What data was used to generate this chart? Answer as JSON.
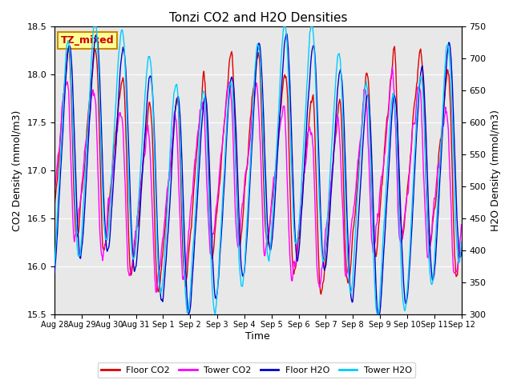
{
  "title": "Tonzi CO2 and H2O Densities",
  "xlabel": "Time",
  "ylabel_left": "CO2 Density (mmol/m3)",
  "ylabel_right": "H2O Density (mmol/m3)",
  "annotation_text": "TZ_mixed",
  "annotation_color": "#cc0000",
  "annotation_bg": "#ffff99",
  "annotation_border": "#cc8800",
  "ylim_left": [
    15.5,
    18.5
  ],
  "ylim_right": [
    300,
    750
  ],
  "xtick_labels": [
    "Aug 28",
    "Aug 29",
    "Aug 30",
    "Aug 31",
    "Sep 1",
    "Sep 2",
    "Sep 3",
    "Sep 4",
    "Sep 5",
    "Sep 6",
    "Sep 7",
    "Sep 8",
    "Sep 9",
    "Sep 10",
    "Sep 11",
    "Sep 12"
  ],
  "line_colors": {
    "floor_co2": "#dd0000",
    "tower_co2": "#ff00ff",
    "floor_h2o": "#0000cc",
    "tower_h2o": "#00ccff"
  },
  "legend_labels": [
    "Floor CO2",
    "Tower CO2",
    "Floor H2O",
    "Tower H2O"
  ],
  "background_color": "#e8e8e8",
  "grid_color": "#ffffff",
  "n_days": 15,
  "seed": 12345
}
